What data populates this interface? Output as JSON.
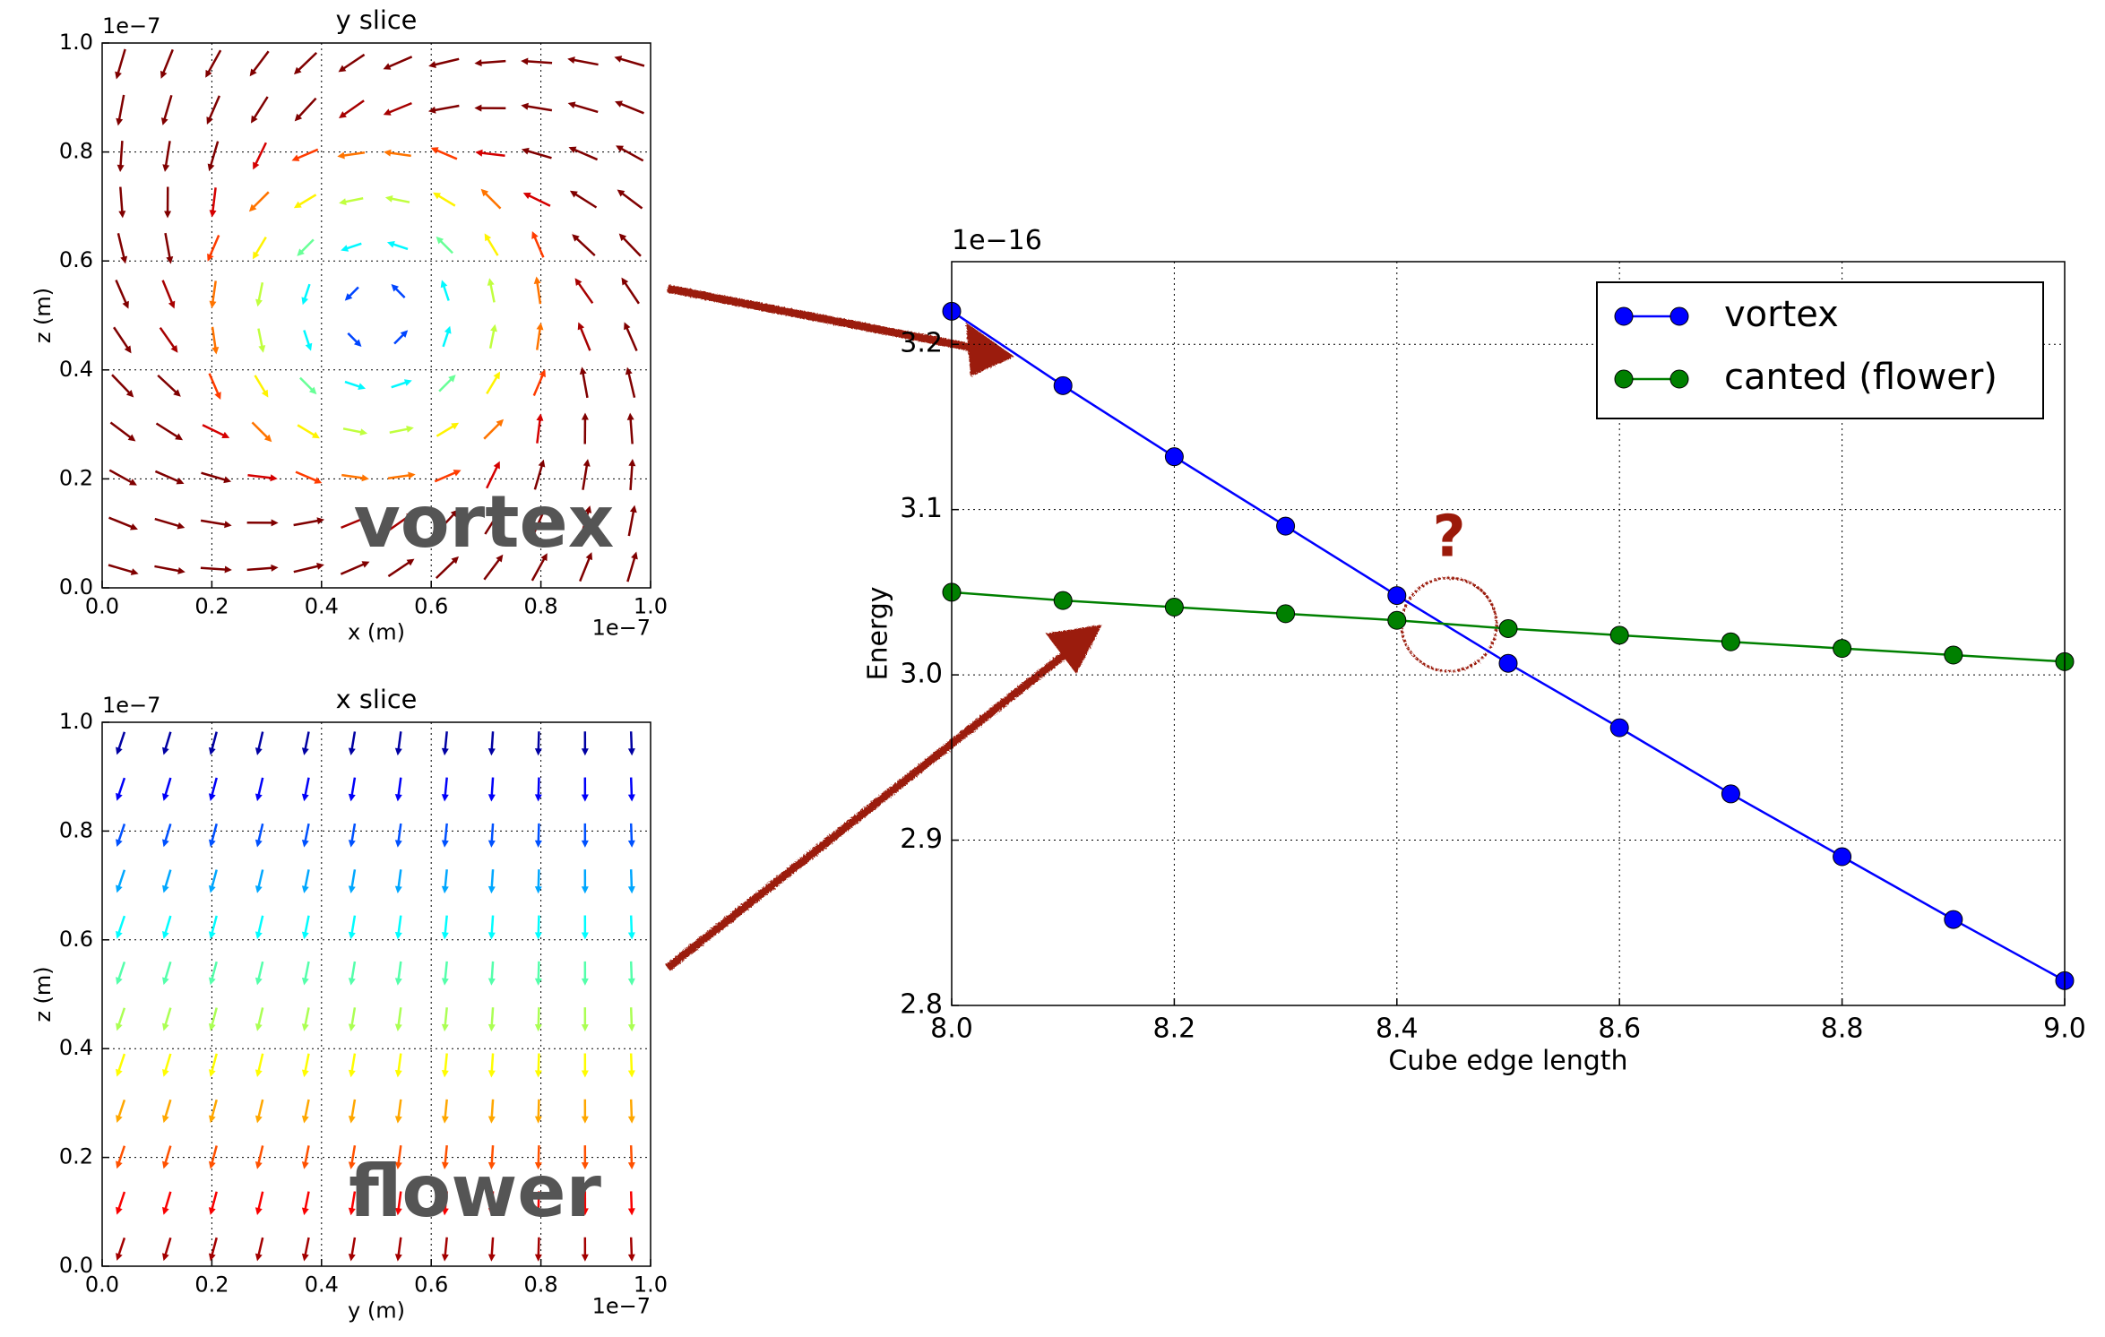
{
  "chart_data": [
    {
      "type": "quiver",
      "title": "y slice",
      "xlabel": "x (m)",
      "ylabel": "z (m)",
      "x_offset_label": "1e−7",
      "y_offset_label": "1e−7",
      "xlim": [
        0,
        1
      ],
      "ylim": [
        0,
        1
      ],
      "xticks": [
        {
          "value": 0,
          "label": "0.0"
        },
        0.2,
        0.4,
        0.6,
        0.8,
        {
          "value": 1,
          "label": "1.0"
        }
      ],
      "yticks": [
        {
          "value": 0,
          "label": "0.0"
        },
        0.2,
        0.4,
        0.6,
        0.8,
        {
          "value": 1,
          "label": "1.0"
        }
      ],
      "grid": true,
      "annotation": "vortex"
    },
    {
      "type": "quiver",
      "title": "x slice",
      "xlabel": "y (m)",
      "ylabel": "z (m)",
      "x_offset_label": "1e−7",
      "y_offset_label": "1e−7",
      "xlim": [
        0,
        1
      ],
      "ylim": [
        0,
        1
      ],
      "xticks": [
        {
          "value": 0,
          "label": "0.0"
        },
        0.2,
        0.4,
        0.6,
        0.8,
        {
          "value": 1,
          "label": "1.0"
        }
      ],
      "yticks": [
        {
          "value": 0,
          "label": "0.0"
        },
        0.2,
        0.4,
        0.6,
        0.8,
        {
          "value": 1,
          "label": "1.0"
        }
      ],
      "grid": true,
      "annotation": "flower"
    },
    {
      "type": "line",
      "xlabel": "Cube edge length",
      "ylabel": "Energy",
      "y_offset_label": "1e−16",
      "x": [
        8.0,
        8.1,
        8.2,
        8.3,
        8.4,
        8.5,
        8.6,
        8.7,
        8.8,
        8.9,
        9.0
      ],
      "series": [
        {
          "name": "vortex",
          "color": "#0000ff",
          "values": [
            3.22,
            3.175,
            3.132,
            3.09,
            3.048,
            3.007,
            2.968,
            2.928,
            2.89,
            2.852,
            2.815
          ]
        },
        {
          "name": "canted (flower)",
          "color": "#008000",
          "values": [
            3.05,
            3.045,
            3.041,
            3.037,
            3.033,
            3.028,
            3.024,
            3.02,
            3.016,
            3.012,
            3.008
          ]
        }
      ],
      "xlim": [
        8,
        9
      ],
      "ylim": [
        2.8,
        3.25
      ],
      "xticks": [
        {
          "value": 8,
          "label": "8.0"
        },
        8.2,
        8.4,
        8.6,
        8.8,
        {
          "value": 9,
          "label": "9.0"
        }
      ],
      "yticks": [
        2.8,
        2.9,
        {
          "value": 3,
          "label": "3.0"
        },
        3.1,
        3.2
      ],
      "grid": true,
      "legend": "upper right",
      "annotation": "?"
    }
  ]
}
